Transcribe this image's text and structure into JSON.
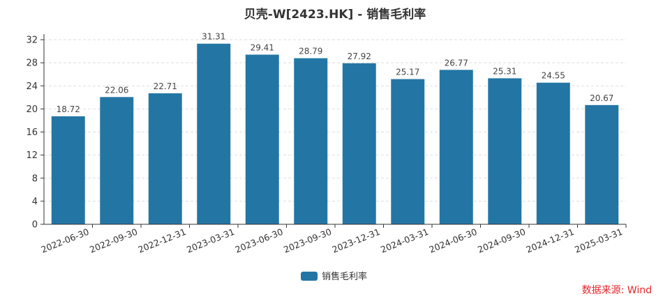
{
  "chart_data": {
    "type": "bar",
    "title": "贝壳-W[2423.HK] - 销售毛利率",
    "categories": [
      "2022-06-30",
      "2022-09-30",
      "2022-12-31",
      "2023-03-31",
      "2023-06-30",
      "2023-09-30",
      "2023-12-31",
      "2024-03-31",
      "2024-06-30",
      "2024-09-30",
      "2024-12-31",
      "2025-03-31"
    ],
    "series": [
      {
        "name": "销售毛利率",
        "values": [
          18.72,
          22.06,
          22.71,
          31.31,
          29.41,
          28.79,
          27.92,
          25.17,
          26.77,
          25.31,
          24.55,
          20.67
        ]
      }
    ],
    "data_labels": [
      "18.72",
      "22.06",
      "22.71",
      "31.31",
      "29.41",
      "28.79",
      "27.92",
      "25.17",
      "26.77",
      "25.31",
      "24.55",
      "20.67"
    ],
    "ylim": [
      0,
      32
    ],
    "yticks": [
      0,
      4,
      8,
      12,
      16,
      20,
      24,
      28,
      32
    ],
    "ytick_labels": [
      "0",
      "4",
      "8",
      "12",
      "16",
      "20",
      "24",
      "28",
      "32"
    ],
    "grid": true,
    "legend_position": "bottom-center",
    "colors": {
      "bar": "#2376a4",
      "grid": "#dddddd",
      "axis": "#333333",
      "source": "#e8262a"
    }
  },
  "source_text": "数据来源: Wind"
}
